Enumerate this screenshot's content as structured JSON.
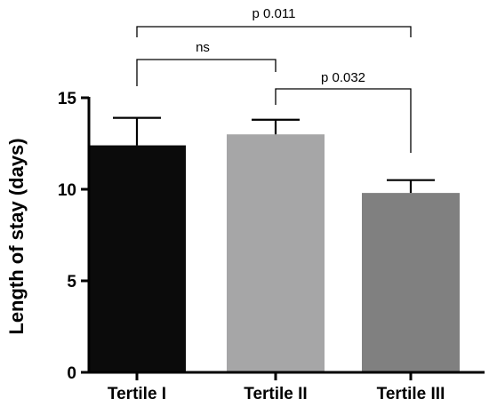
{
  "chart_data": {
    "type": "bar",
    "categories": [
      "Tertile I",
      "Tertile II",
      "Tertile III"
    ],
    "values": [
      12.4,
      13.0,
      9.8
    ],
    "errors": [
      1.5,
      0.8,
      0.7
    ],
    "colors": [
      "#0b0b0b",
      "#a6a6a7",
      "#808080"
    ],
    "ylabel": "Length of stay (days)",
    "ylim": [
      0,
      15
    ],
    "yticks": [
      0,
      5,
      10,
      15
    ],
    "grid": false,
    "annotations": [
      {
        "from": 0,
        "to": 2,
        "label": "p 0.011"
      },
      {
        "from": 0,
        "to": 1,
        "label": "ns"
      },
      {
        "from": 1,
        "to": 2,
        "label": "p 0.032"
      }
    ]
  }
}
